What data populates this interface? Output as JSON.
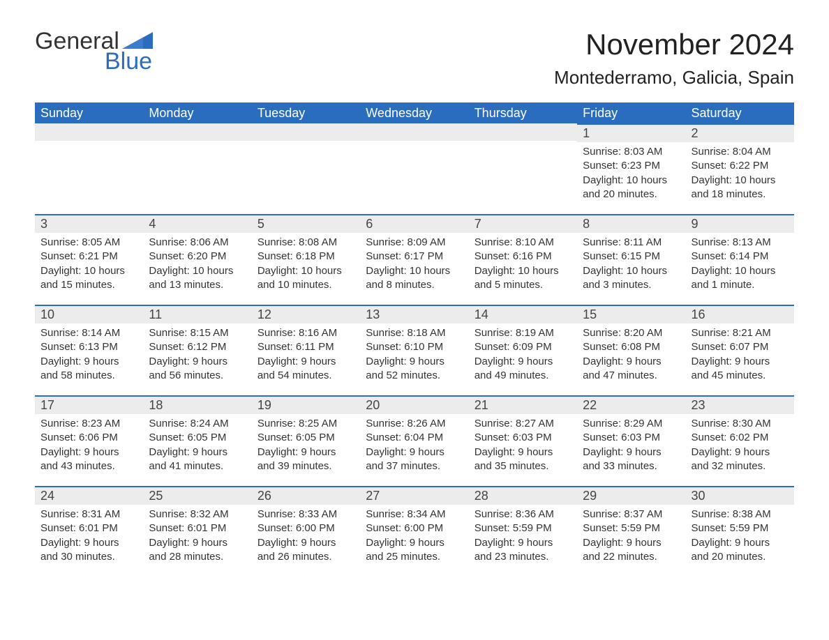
{
  "logo": {
    "part1": "General",
    "part2": "Blue"
  },
  "title": "November 2024",
  "location": "Montederramo, Galicia, Spain",
  "colors": {
    "header_bg": "#2a6dbf",
    "header_text": "#ffffff",
    "daynum_bg": "#ececec",
    "daynum_border": "#2a6dbf",
    "body_text": "#333333",
    "logo_blue": "#2a6dbf"
  },
  "weekdays": [
    "Sunday",
    "Monday",
    "Tuesday",
    "Wednesday",
    "Thursday",
    "Friday",
    "Saturday"
  ],
  "weeks": [
    [
      null,
      null,
      null,
      null,
      null,
      {
        "day": "1",
        "sunrise": "Sunrise: 8:03 AM",
        "sunset": "Sunset: 6:23 PM",
        "daylight": "Daylight: 10 hours and 20 minutes."
      },
      {
        "day": "2",
        "sunrise": "Sunrise: 8:04 AM",
        "sunset": "Sunset: 6:22 PM",
        "daylight": "Daylight: 10 hours and 18 minutes."
      }
    ],
    [
      {
        "day": "3",
        "sunrise": "Sunrise: 8:05 AM",
        "sunset": "Sunset: 6:21 PM",
        "daylight": "Daylight: 10 hours and 15 minutes."
      },
      {
        "day": "4",
        "sunrise": "Sunrise: 8:06 AM",
        "sunset": "Sunset: 6:20 PM",
        "daylight": "Daylight: 10 hours and 13 minutes."
      },
      {
        "day": "5",
        "sunrise": "Sunrise: 8:08 AM",
        "sunset": "Sunset: 6:18 PM",
        "daylight": "Daylight: 10 hours and 10 minutes."
      },
      {
        "day": "6",
        "sunrise": "Sunrise: 8:09 AM",
        "sunset": "Sunset: 6:17 PM",
        "daylight": "Daylight: 10 hours and 8 minutes."
      },
      {
        "day": "7",
        "sunrise": "Sunrise: 8:10 AM",
        "sunset": "Sunset: 6:16 PM",
        "daylight": "Daylight: 10 hours and 5 minutes."
      },
      {
        "day": "8",
        "sunrise": "Sunrise: 8:11 AM",
        "sunset": "Sunset: 6:15 PM",
        "daylight": "Daylight: 10 hours and 3 minutes."
      },
      {
        "day": "9",
        "sunrise": "Sunrise: 8:13 AM",
        "sunset": "Sunset: 6:14 PM",
        "daylight": "Daylight: 10 hours and 1 minute."
      }
    ],
    [
      {
        "day": "10",
        "sunrise": "Sunrise: 8:14 AM",
        "sunset": "Sunset: 6:13 PM",
        "daylight": "Daylight: 9 hours and 58 minutes."
      },
      {
        "day": "11",
        "sunrise": "Sunrise: 8:15 AM",
        "sunset": "Sunset: 6:12 PM",
        "daylight": "Daylight: 9 hours and 56 minutes."
      },
      {
        "day": "12",
        "sunrise": "Sunrise: 8:16 AM",
        "sunset": "Sunset: 6:11 PM",
        "daylight": "Daylight: 9 hours and 54 minutes."
      },
      {
        "day": "13",
        "sunrise": "Sunrise: 8:18 AM",
        "sunset": "Sunset: 6:10 PM",
        "daylight": "Daylight: 9 hours and 52 minutes."
      },
      {
        "day": "14",
        "sunrise": "Sunrise: 8:19 AM",
        "sunset": "Sunset: 6:09 PM",
        "daylight": "Daylight: 9 hours and 49 minutes."
      },
      {
        "day": "15",
        "sunrise": "Sunrise: 8:20 AM",
        "sunset": "Sunset: 6:08 PM",
        "daylight": "Daylight: 9 hours and 47 minutes."
      },
      {
        "day": "16",
        "sunrise": "Sunrise: 8:21 AM",
        "sunset": "Sunset: 6:07 PM",
        "daylight": "Daylight: 9 hours and 45 minutes."
      }
    ],
    [
      {
        "day": "17",
        "sunrise": "Sunrise: 8:23 AM",
        "sunset": "Sunset: 6:06 PM",
        "daylight": "Daylight: 9 hours and 43 minutes."
      },
      {
        "day": "18",
        "sunrise": "Sunrise: 8:24 AM",
        "sunset": "Sunset: 6:05 PM",
        "daylight": "Daylight: 9 hours and 41 minutes."
      },
      {
        "day": "19",
        "sunrise": "Sunrise: 8:25 AM",
        "sunset": "Sunset: 6:05 PM",
        "daylight": "Daylight: 9 hours and 39 minutes."
      },
      {
        "day": "20",
        "sunrise": "Sunrise: 8:26 AM",
        "sunset": "Sunset: 6:04 PM",
        "daylight": "Daylight: 9 hours and 37 minutes."
      },
      {
        "day": "21",
        "sunrise": "Sunrise: 8:27 AM",
        "sunset": "Sunset: 6:03 PM",
        "daylight": "Daylight: 9 hours and 35 minutes."
      },
      {
        "day": "22",
        "sunrise": "Sunrise: 8:29 AM",
        "sunset": "Sunset: 6:03 PM",
        "daylight": "Daylight: 9 hours and 33 minutes."
      },
      {
        "day": "23",
        "sunrise": "Sunrise: 8:30 AM",
        "sunset": "Sunset: 6:02 PM",
        "daylight": "Daylight: 9 hours and 32 minutes."
      }
    ],
    [
      {
        "day": "24",
        "sunrise": "Sunrise: 8:31 AM",
        "sunset": "Sunset: 6:01 PM",
        "daylight": "Daylight: 9 hours and 30 minutes."
      },
      {
        "day": "25",
        "sunrise": "Sunrise: 8:32 AM",
        "sunset": "Sunset: 6:01 PM",
        "daylight": "Daylight: 9 hours and 28 minutes."
      },
      {
        "day": "26",
        "sunrise": "Sunrise: 8:33 AM",
        "sunset": "Sunset: 6:00 PM",
        "daylight": "Daylight: 9 hours and 26 minutes."
      },
      {
        "day": "27",
        "sunrise": "Sunrise: 8:34 AM",
        "sunset": "Sunset: 6:00 PM",
        "daylight": "Daylight: 9 hours and 25 minutes."
      },
      {
        "day": "28",
        "sunrise": "Sunrise: 8:36 AM",
        "sunset": "Sunset: 5:59 PM",
        "daylight": "Daylight: 9 hours and 23 minutes."
      },
      {
        "day": "29",
        "sunrise": "Sunrise: 8:37 AM",
        "sunset": "Sunset: 5:59 PM",
        "daylight": "Daylight: 9 hours and 22 minutes."
      },
      {
        "day": "30",
        "sunrise": "Sunrise: 8:38 AM",
        "sunset": "Sunset: 5:59 PM",
        "daylight": "Daylight: 9 hours and 20 minutes."
      }
    ]
  ]
}
